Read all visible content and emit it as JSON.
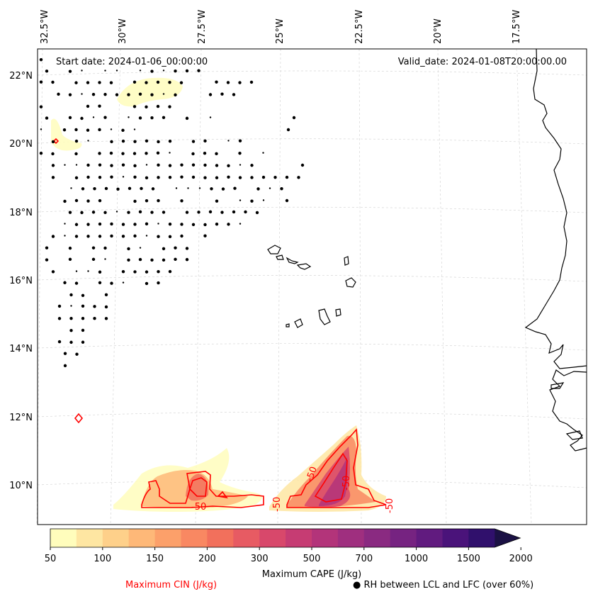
{
  "header": {
    "start_date": "Start date: 2024-01-06_00:00:00",
    "valid_date": "Valid_date: 2024-01-08T20:00:00.00"
  },
  "map": {
    "lon_labels": [
      "32.5°W",
      "30°W",
      "27.5°W",
      "25°W",
      "22.5°W",
      "20°W",
      "17.5°W"
    ],
    "lat_labels": [
      "22°N",
      "20°N",
      "18°N",
      "16°N",
      "14°N",
      "12°N",
      "10°N"
    ],
    "cin_contour_label": "-50",
    "cin_color": "#ff0000",
    "coastline_color": "#000000"
  },
  "colorbar": {
    "title": "Maximum CAPE (J/kg)",
    "ticks": [
      "50",
      "100",
      "150",
      "200",
      "300",
      "500",
      "700",
      "1000",
      "1500",
      "2000"
    ],
    "colors": [
      "#fffdbc",
      "#fee6a2",
      "#fed08a",
      "#feb878",
      "#fca06a",
      "#f98862",
      "#f2705c",
      "#e75b63",
      "#d8486b",
      "#c63c73",
      "#b3347a",
      "#9f2f7f",
      "#8a2a81",
      "#762381",
      "#611b7f",
      "#4a137a",
      "#30106c",
      "#1b1144"
    ]
  },
  "legend": {
    "cin_label": "Maximum CIN (J/kg)",
    "rh_label": "RH between LCL and LFC (over 60%)",
    "rh_marker": "●"
  }
}
